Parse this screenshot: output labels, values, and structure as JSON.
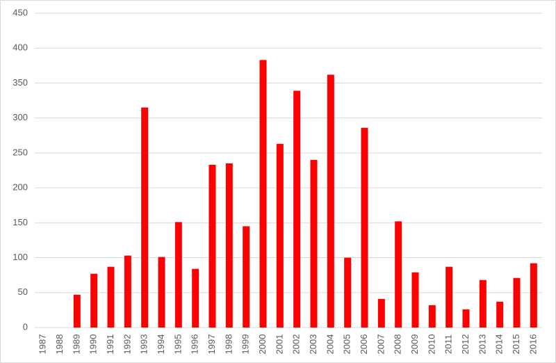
{
  "chart_data": {
    "type": "bar",
    "categories": [
      "1987",
      "1988",
      "1989",
      "1990",
      "1991",
      "1992",
      "1993",
      "1994",
      "1995",
      "1996",
      "1997",
      "1998",
      "1999",
      "2000",
      "2001",
      "2002",
      "2003",
      "2004",
      "2005",
      "2006",
      "2007",
      "2008",
      "2009",
      "2010",
      "2011",
      "2012",
      "2013",
      "2014",
      "2015",
      "2016"
    ],
    "values": [
      0,
      0,
      47,
      77,
      87,
      103,
      315,
      101,
      151,
      84,
      233,
      235,
      145,
      383,
      263,
      339,
      240,
      362,
      100,
      286,
      41,
      152,
      79,
      32,
      87,
      26,
      68,
      37,
      71,
      92
    ],
    "color": "#ff0000",
    "ylim": [
      0,
      450
    ],
    "yticks": [
      0,
      50,
      100,
      150,
      200,
      250,
      300,
      350,
      400,
      450
    ],
    "grid": true
  }
}
